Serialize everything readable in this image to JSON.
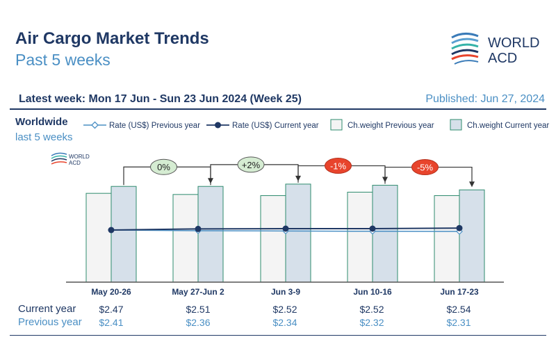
{
  "header": {
    "title": "Air Cargo Market Trends",
    "subtitle": "Past 5 weeks",
    "latest_week": "Latest week: Mon 17 Jun - Sun 23 Jun 2024 (Week 25)",
    "published": "Published: Jun 27, 2024",
    "logo_text_1": "WORLD",
    "logo_text_2": "ACD"
  },
  "region": {
    "name": "Worldwide",
    "period": "last 5 weeks"
  },
  "legend": {
    "rate_prev": "Rate (US$) Previous year",
    "rate_cur": "Rate (US$) Current year",
    "weight_prev": "Ch.weight Previous year",
    "weight_cur": "Ch.weight Current year"
  },
  "table": {
    "current_label": "Current year",
    "previous_label": "Previous year",
    "current": [
      "$2.47",
      "$2.51",
      "$2.52",
      "$2.52",
      "$2.54"
    ],
    "previous": [
      "$2.41",
      "$2.36",
      "$2.34",
      "$2.32",
      "$2.31"
    ]
  },
  "colors": {
    "navy": "#1f3864",
    "light_blue": "#4a8fc4",
    "bar_prev_fill": "#f4f4f4",
    "bar_cur_fill": "#d6e0ea",
    "bar_stroke": "#2e8b6e",
    "bubble_green": "#d5ecd2",
    "bubble_red": "#e8442c"
  },
  "chart_data": {
    "type": "bar",
    "categories": [
      "May 20-26",
      "May 27-Jun 2",
      "Jun 3-9",
      "Jun 10-16",
      "Jun 17-23"
    ],
    "series": [
      {
        "name": "Ch.weight Previous year",
        "kind": "bar",
        "values": [
          77,
          76,
          75,
          78,
          75
        ]
      },
      {
        "name": "Ch.weight Current year",
        "kind": "bar",
        "values": [
          83,
          83,
          85,
          84,
          80
        ]
      },
      {
        "name": "Rate (US$) Current year",
        "kind": "line",
        "values": [
          2.47,
          2.51,
          2.52,
          2.52,
          2.54
        ]
      },
      {
        "name": "Rate (US$) Previous year",
        "kind": "line",
        "values": [
          2.41,
          2.36,
          2.34,
          2.32,
          2.31
        ]
      }
    ],
    "changes": [
      "0%",
      "+2%",
      "-1%",
      "-5%"
    ],
    "change_colors": [
      "green",
      "green",
      "red",
      "red"
    ]
  }
}
